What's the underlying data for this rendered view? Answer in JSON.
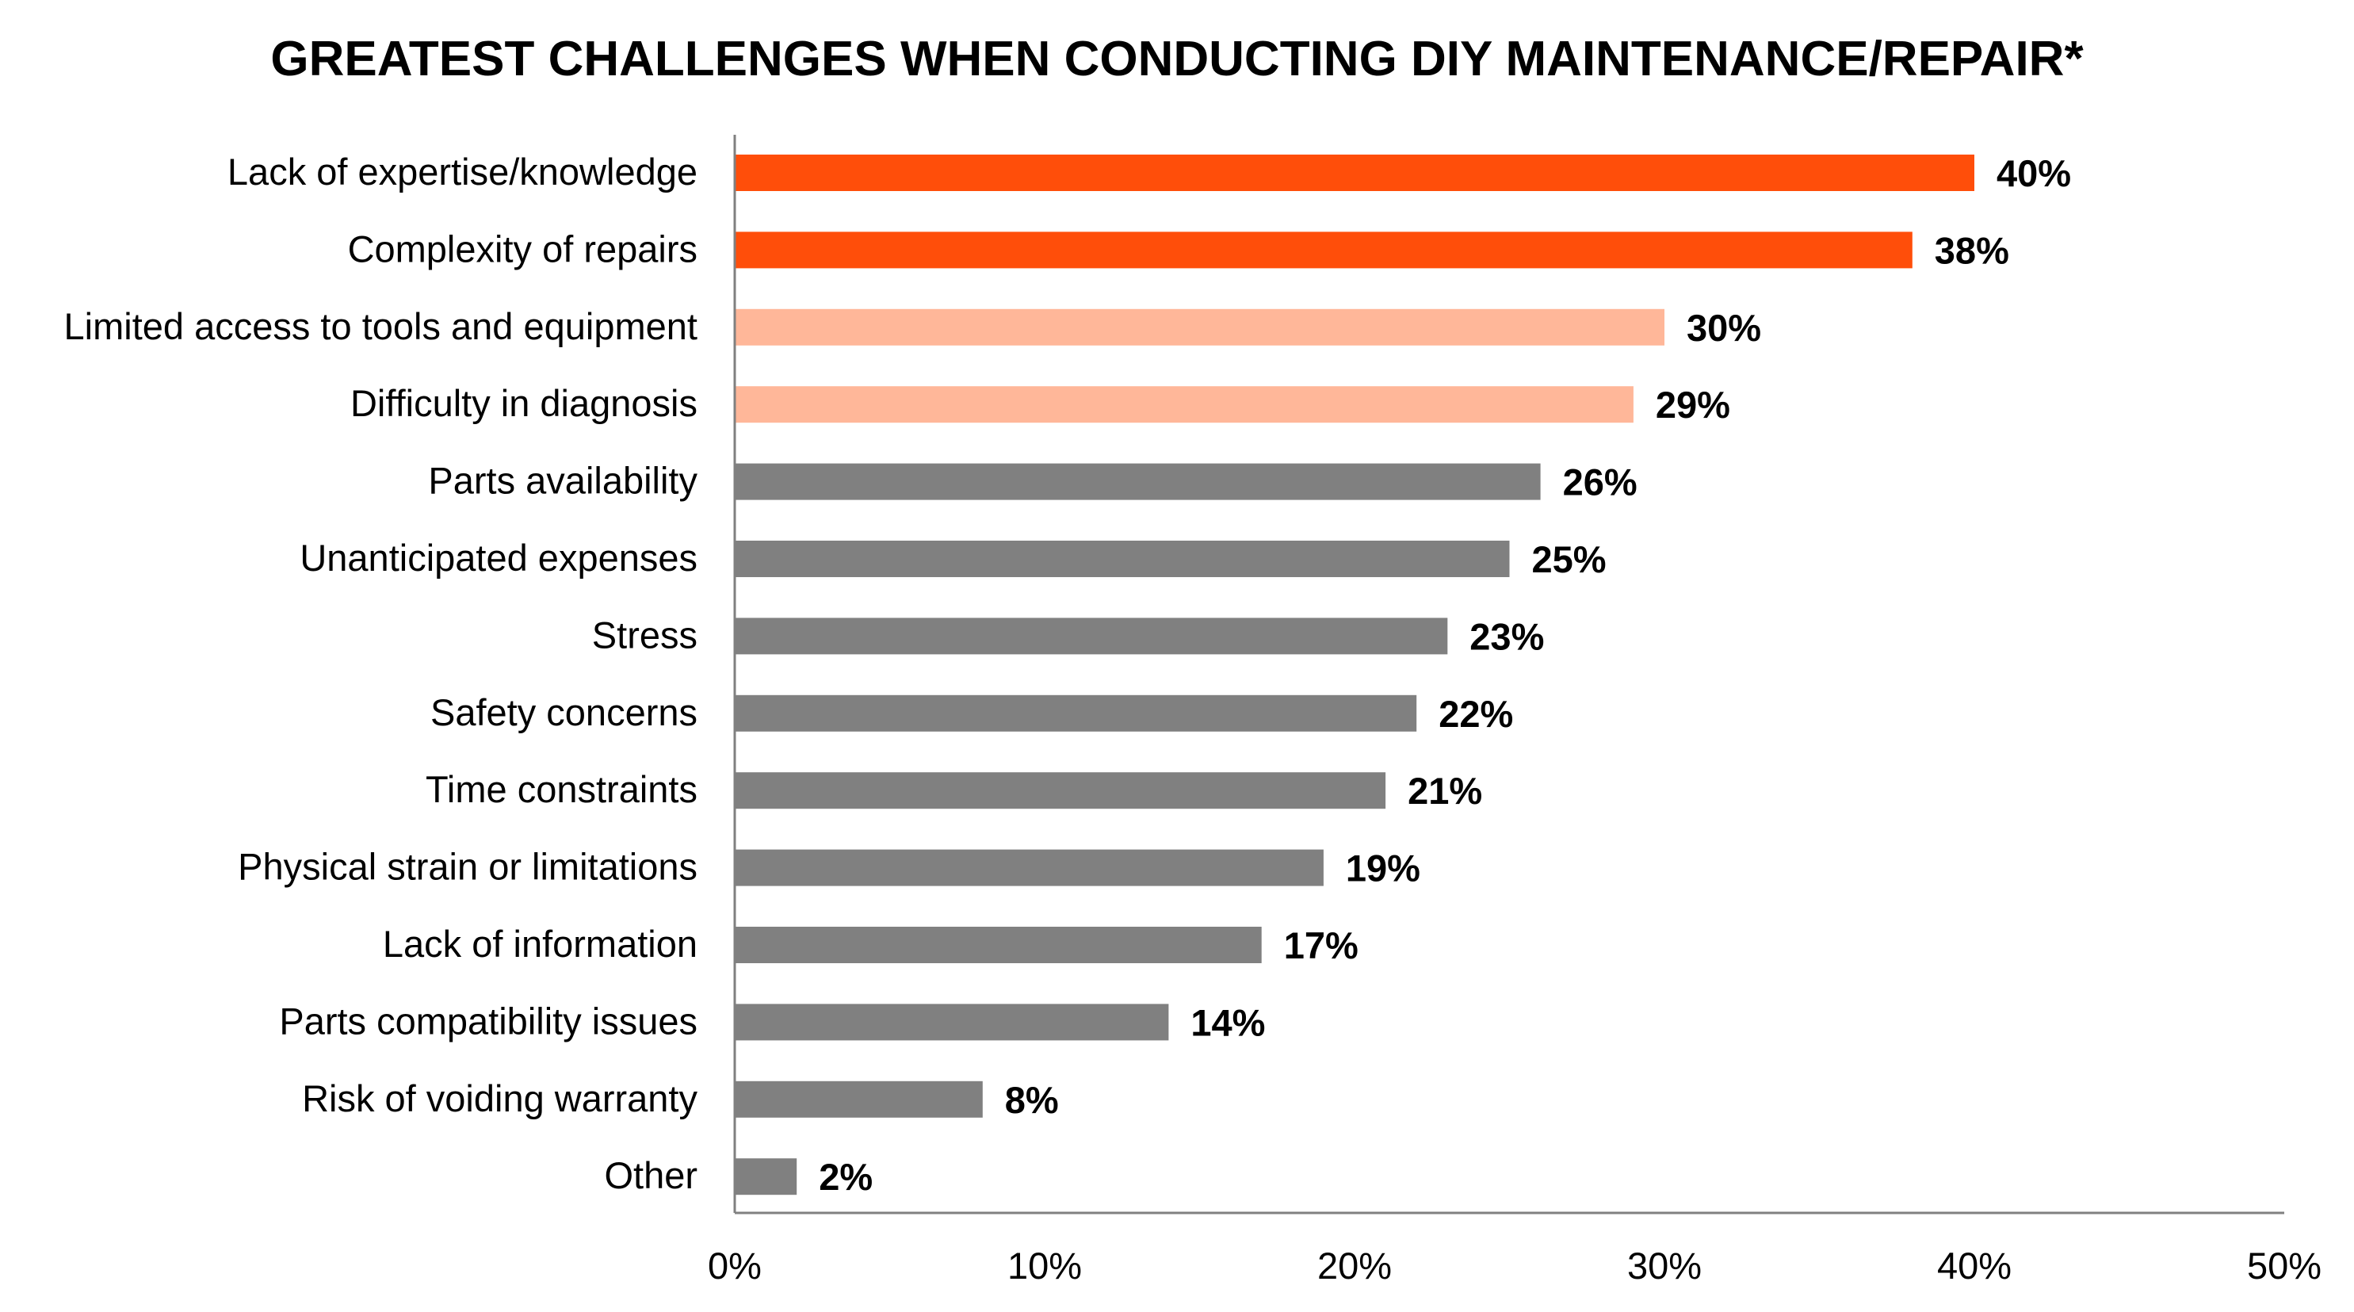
{
  "chart_data": {
    "type": "bar",
    "orientation": "horizontal",
    "title": "GREATEST CHALLENGES WHEN CONDUCTING DIY MAINTENANCE/REPAIR*",
    "xlabel": "",
    "ylabel": "",
    "xlim": [
      0,
      50
    ],
    "x_ticks": [
      "0%",
      "10%",
      "20%",
      "30%",
      "40%",
      "50%"
    ],
    "grid": false,
    "legend": "none",
    "categories": [
      "Lack of expertise/knowledge",
      "Complexity of repairs",
      "Limited access to tools and equipment",
      "Difficulty in diagnosis",
      "Parts availability",
      "Unanticipated expenses",
      "Stress",
      "Safety concerns",
      "Time constraints",
      "Physical strain or limitations",
      "Lack of information",
      "Parts compatibility issues",
      "Risk of voiding warranty",
      "Other"
    ],
    "values": [
      40,
      38,
      30,
      29,
      26,
      25,
      23,
      22,
      21,
      19,
      17,
      14,
      8,
      2
    ],
    "value_labels": [
      "40%",
      "38%",
      "30%",
      "29%",
      "26%",
      "25%",
      "23%",
      "22%",
      "21%",
      "19%",
      "17%",
      "14%",
      "8%",
      "2%"
    ],
    "bar_colors": [
      "#FF4E0A",
      "#FF4E0A",
      "#FFB799",
      "#FFB799",
      "#808080",
      "#808080",
      "#808080",
      "#808080",
      "#808080",
      "#808080",
      "#808080",
      "#808080",
      "#808080",
      "#808080"
    ],
    "axis_color": "#808080",
    "text_color": "#000000"
  }
}
